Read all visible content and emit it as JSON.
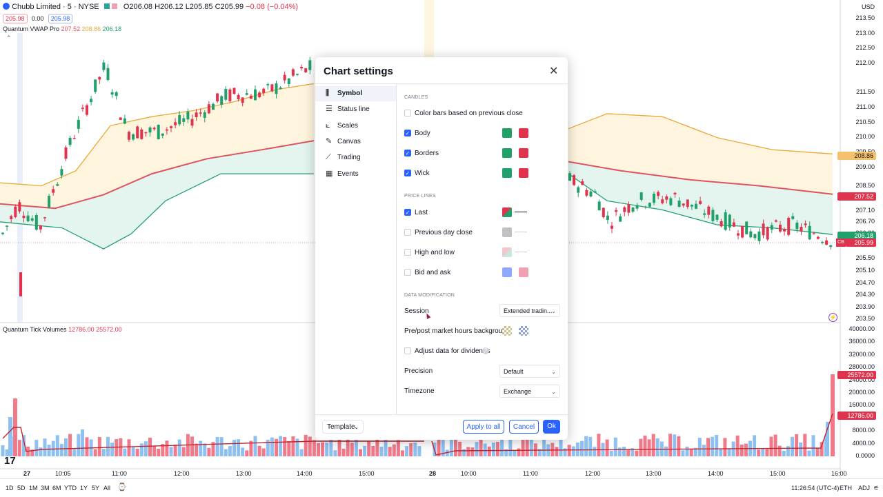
{
  "symbol": {
    "name": "Chubb Limited · 5 · NYSE",
    "open": "O206.08",
    "high": "H206.12",
    "low": "L205.85",
    "close": "C205.99",
    "change": "−0.08 (−0.04%)",
    "bid": "205.98",
    "spread": "0.00",
    "ask": "205.98"
  },
  "indicator1": {
    "name": "Quantum VWAP Pro",
    "v1": "207.52",
    "v2": "208.86",
    "v3": "206.18"
  },
  "indicator2": {
    "name": "Quantum Tick Volumes",
    "v1": "12786.00",
    "v2": "25572.00"
  },
  "currency": "USD",
  "price_axis": [
    "213.50",
    "213.00",
    "212.50",
    "212.00",
    "211.50",
    "211.00",
    "210.50",
    "210.00",
    "209.50",
    "209.00",
    "208.50",
    "207.90",
    "207.10",
    "206.70",
    "206.30",
    "205.50",
    "205.10",
    "204.70",
    "204.30",
    "203.90",
    "203.50"
  ],
  "price_badges": {
    "upper": "208.86",
    "vwap": "207.52",
    "lower": "206.18",
    "last_tag": "CB",
    "last": "205.99"
  },
  "volume_axis": [
    "40000.00",
    "36000.00",
    "32000.00",
    "28000.00",
    "24000.00",
    "20000.00",
    "16000.00",
    "12000.00",
    "8000.00",
    "4000.00",
    "0.0000"
  ],
  "volume_badges": {
    "high": "25572.00",
    "low": "12786.00"
  },
  "time_axis": [
    "27",
    "10:05",
    "11:00",
    "12:00",
    "13:00",
    "14:00",
    "15:00",
    "28",
    "10:00",
    "11:00",
    "12:00",
    "13:00",
    "14:00",
    "15:00",
    "16:00"
  ],
  "bottom_bar": {
    "ranges": [
      "1D",
      "5D",
      "1M",
      "3M",
      "6M",
      "YTD",
      "1Y",
      "5Y",
      "All"
    ],
    "clock": "11:26:54 (UTC-4)",
    "session": "ETH",
    "adj": "ADJ"
  },
  "dialog": {
    "title": "Chart settings",
    "nav": [
      {
        "label": "Symbol",
        "icon": "symbol-icon"
      },
      {
        "label": "Status line",
        "icon": "status-line-icon"
      },
      {
        "label": "Scales",
        "icon": "scales-icon"
      },
      {
        "label": "Canvas",
        "icon": "canvas-icon"
      },
      {
        "label": "Trading",
        "icon": "trading-icon"
      },
      {
        "label": "Events",
        "icon": "events-icon"
      }
    ],
    "sections": {
      "candles": "CANDLES",
      "price_lines": "PRICE LINES",
      "data_mod": "DATA MODIFICATION"
    },
    "candles": [
      {
        "label": "Color bars based on previous close",
        "checked": false
      },
      {
        "label": "Body",
        "checked": true
      },
      {
        "label": "Borders",
        "checked": true
      },
      {
        "label": "Wick",
        "checked": true
      }
    ],
    "price_lines": [
      {
        "label": "Last",
        "checked": true
      },
      {
        "label": "Previous day close",
        "checked": false
      },
      {
        "label": "High and low",
        "checked": false
      },
      {
        "label": "Bid and ask",
        "checked": false
      }
    ],
    "session_label": "Session",
    "session_value": "Extended tradin...",
    "prepost_label": "Pre/post market hours background",
    "dividends_label": "Adjust data for dividends",
    "precision_label": "Precision",
    "precision_value": "Default",
    "timezone_label": "Timezone",
    "timezone_value": "Exchange",
    "template_label": "Template",
    "apply_all": "Apply to all",
    "cancel": "Cancel",
    "ok": "Ok"
  },
  "colors": {
    "up": "#22a06b",
    "down": "#e0334d",
    "accent": "#2962ff",
    "vwap": "#e05260",
    "upper_band": "#e8a93a",
    "lower_band": "#22a06b"
  }
}
